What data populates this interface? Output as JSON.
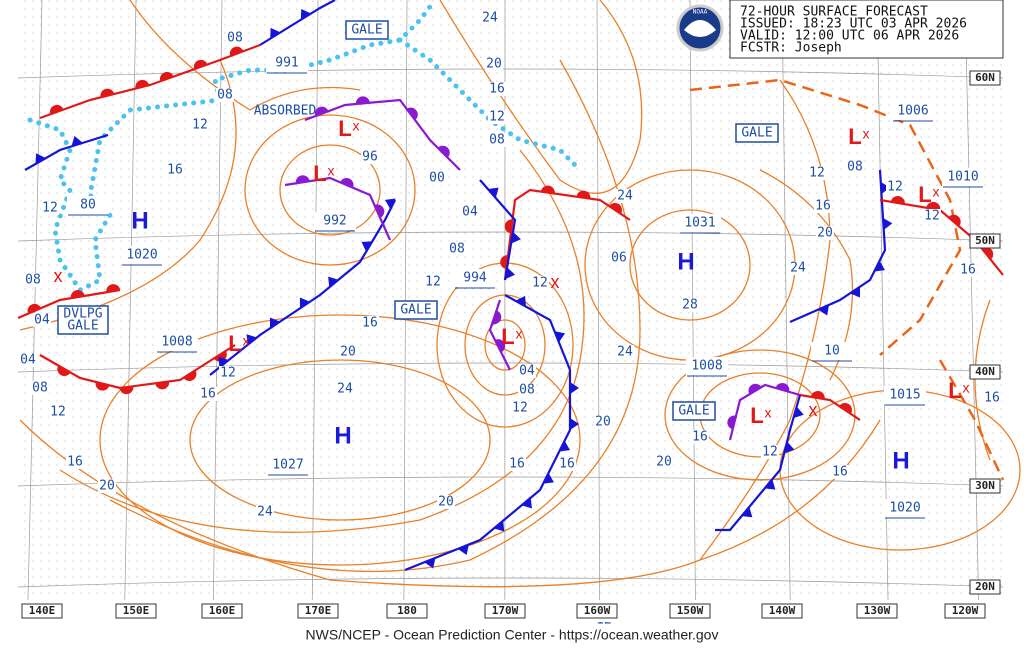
{
  "header": {
    "lines": [
      "72-HOUR SURFACE FORECAST",
      "ISSUED: 18:23 UTC 03 APR 2026",
      "VALID:  12:00 UTC 06 APR 2026",
      "FCSTR:  Joseph"
    ],
    "logo": "NOAA"
  },
  "longitude_labels": [
    "140E",
    "150E",
    "160E",
    "170E",
    "180",
    "170W",
    "160W",
    "150W",
    "140W",
    "130W",
    "120W"
  ],
  "latitude_labels": [
    "60N",
    "50N",
    "40N",
    "30N",
    "20N"
  ],
  "symbols": {
    "high": "H",
    "low": "L",
    "low_mark": "x"
  },
  "pressure_labels": [
    "991",
    "992",
    "80",
    "1020",
    "1008",
    "1027",
    "994",
    "1031",
    "1008",
    "10",
    "1015",
    "1020",
    "1006",
    "1010"
  ],
  "isobar_labels": [
    "08",
    "08",
    "12",
    "16",
    "12",
    "08",
    "04",
    "04",
    "08",
    "12",
    "16",
    "20",
    "24",
    "24",
    "20",
    "16",
    "12",
    "16",
    "96",
    "00",
    "04",
    "08",
    "12",
    "24",
    "20",
    "16",
    "12",
    "08",
    "24",
    "12",
    "06",
    "28",
    "24",
    "04",
    "08",
    "12",
    "16",
    "16",
    "20",
    "20",
    "20",
    "16",
    "12",
    "16",
    "12",
    "16",
    "20",
    "24",
    "08",
    "12",
    "12",
    "16",
    "16",
    "12"
  ],
  "gale_labels": [
    "GALE",
    "GALE",
    "GALE",
    "GALE"
  ],
  "developing_gale": [
    "DVLPG",
    "GALE"
  ],
  "annotations": [
    "ABSORBED"
  ],
  "footer": "NWS/NCEP - Ocean Prediction Center - https://ocean.weather.gov"
}
